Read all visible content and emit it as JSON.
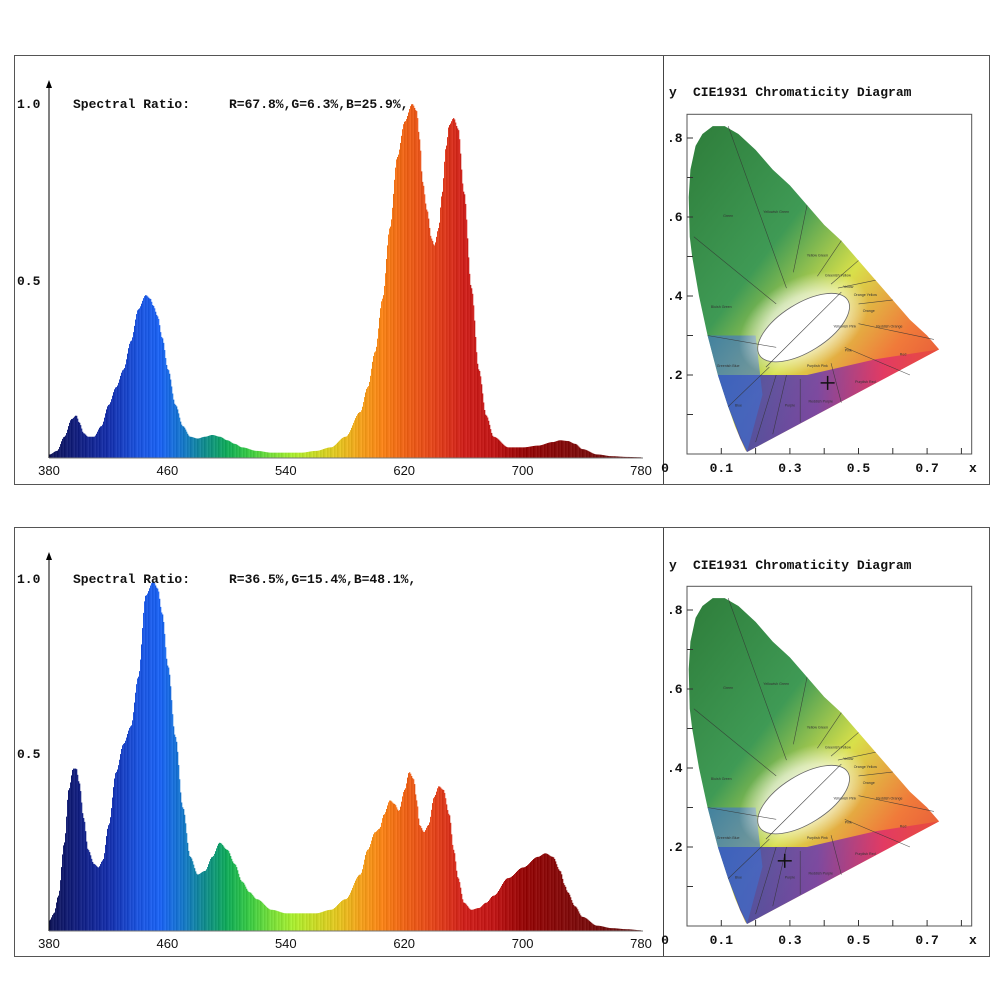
{
  "chart_data": [
    {
      "type": "area",
      "id": "spectrum-top",
      "title": "Spectral Ratio:  R=67.8%,G=6.3%,B=25.9%,",
      "spectral_ratio": {
        "R": "67.8%",
        "G": "6.3%",
        "B": "25.9%"
      },
      "xlabel": "",
      "ylabel": "",
      "xlim": [
        380,
        780
      ],
      "ylim": [
        0,
        1.0
      ],
      "x_ticks": [
        "380",
        "460",
        "540",
        "620",
        "700",
        "780"
      ],
      "y_ticks": [
        "0.5",
        "1.0"
      ],
      "x": [
        380,
        385,
        390,
        395,
        398,
        400,
        403,
        406,
        410,
        415,
        420,
        425,
        430,
        435,
        440,
        445,
        448,
        450,
        453,
        456,
        460,
        465,
        470,
        475,
        480,
        485,
        490,
        495,
        500,
        505,
        510,
        520,
        530,
        540,
        550,
        560,
        570,
        580,
        590,
        595,
        600,
        605,
        610,
        615,
        620,
        625,
        628,
        630,
        632,
        635,
        638,
        640,
        643,
        645,
        648,
        650,
        653,
        656,
        660,
        665,
        670,
        675,
        680,
        690,
        700,
        710,
        720,
        725,
        730,
        735,
        740,
        750,
        760,
        770,
        780
      ],
      "series": [
        {
          "name": "relative intensity",
          "values": [
            0.01,
            0.02,
            0.06,
            0.11,
            0.12,
            0.1,
            0.07,
            0.06,
            0.06,
            0.09,
            0.15,
            0.2,
            0.25,
            0.33,
            0.42,
            0.46,
            0.45,
            0.43,
            0.4,
            0.34,
            0.25,
            0.15,
            0.09,
            0.06,
            0.055,
            0.06,
            0.065,
            0.06,
            0.05,
            0.04,
            0.03,
            0.02,
            0.015,
            0.015,
            0.015,
            0.02,
            0.03,
            0.06,
            0.13,
            0.2,
            0.3,
            0.45,
            0.65,
            0.85,
            0.95,
            1.0,
            0.98,
            0.9,
            0.78,
            0.7,
            0.62,
            0.6,
            0.65,
            0.74,
            0.88,
            0.94,
            0.96,
            0.93,
            0.75,
            0.48,
            0.25,
            0.12,
            0.06,
            0.03,
            0.03,
            0.035,
            0.045,
            0.05,
            0.048,
            0.04,
            0.025,
            0.01,
            0.005,
            0.003,
            0.002
          ]
        }
      ]
    },
    {
      "type": "scatter",
      "id": "cie-top",
      "title": "CIE1931 Chromaticity Diagram",
      "xlabel": "x",
      "ylabel": "y",
      "xlim": [
        0,
        0.8
      ],
      "ylim": [
        0,
        0.85
      ],
      "x_ticks": [
        "0",
        "0.1",
        "0.3",
        "0.5",
        "0.7"
      ],
      "y_ticks": [
        ".2",
        ".4",
        ".6",
        ".8"
      ],
      "points": [
        {
          "label": "measured chromaticity",
          "x": 0.41,
          "y": 0.18
        }
      ],
      "regions": [
        "Green",
        "Yellowish Green",
        "Yellow Green",
        "Greenish Yellow",
        "Yellow",
        "Orange Yellow",
        "Orange",
        "Bluish Green",
        "Yellowish Pink",
        "Reddish Orange",
        "Pink",
        "Red",
        "Purplish Pink",
        "Purplish Red",
        "Reddish Purple",
        "Purple",
        "Greenish Blue",
        "Blue",
        "Purplish Blue",
        "Violet"
      ]
    },
    {
      "type": "area",
      "id": "spectrum-bottom",
      "title": "Spectral Ratio:  R=36.5%,G=15.4%,B=48.1%,",
      "spectral_ratio": {
        "R": "36.5%",
        "G": "15.4%",
        "B": "48.1%"
      },
      "xlabel": "",
      "ylabel": "",
      "xlim": [
        380,
        780
      ],
      "ylim": [
        0,
        1.0
      ],
      "x_ticks": [
        "380",
        "460",
        "540",
        "620",
        "700",
        "780"
      ],
      "y_ticks": [
        "0.5",
        "1.0"
      ],
      "x": [
        380,
        383,
        386,
        390,
        393,
        396,
        398,
        400,
        403,
        406,
        410,
        413,
        416,
        420,
        425,
        430,
        435,
        440,
        445,
        450,
        453,
        456,
        460,
        465,
        470,
        475,
        480,
        485,
        490,
        495,
        500,
        505,
        510,
        515,
        520,
        530,
        540,
        550,
        560,
        570,
        580,
        590,
        595,
        600,
        603,
        606,
        610,
        613,
        616,
        620,
        623,
        626,
        628,
        630,
        633,
        636,
        640,
        643,
        646,
        650,
        653,
        656,
        660,
        665,
        670,
        675,
        680,
        690,
        700,
        710,
        715,
        720,
        725,
        728,
        730,
        735,
        740,
        750,
        760,
        770,
        780
      ],
      "series": [
        {
          "name": "relative intensity",
          "values": [
            0.03,
            0.05,
            0.1,
            0.25,
            0.4,
            0.46,
            0.46,
            0.42,
            0.32,
            0.23,
            0.19,
            0.18,
            0.2,
            0.3,
            0.45,
            0.53,
            0.58,
            0.72,
            0.95,
            0.99,
            0.97,
            0.9,
            0.75,
            0.55,
            0.35,
            0.21,
            0.16,
            0.17,
            0.21,
            0.25,
            0.23,
            0.19,
            0.14,
            0.11,
            0.09,
            0.06,
            0.05,
            0.05,
            0.05,
            0.06,
            0.09,
            0.16,
            0.23,
            0.28,
            0.29,
            0.33,
            0.37,
            0.36,
            0.34,
            0.4,
            0.45,
            0.43,
            0.37,
            0.3,
            0.28,
            0.3,
            0.38,
            0.41,
            0.4,
            0.33,
            0.23,
            0.15,
            0.08,
            0.06,
            0.065,
            0.08,
            0.1,
            0.15,
            0.18,
            0.21,
            0.22,
            0.21,
            0.17,
            0.13,
            0.11,
            0.07,
            0.04,
            0.015,
            0.008,
            0.005,
            0.002
          ]
        }
      ]
    },
    {
      "type": "scatter",
      "id": "cie-bottom",
      "title": "CIE1931 Chromaticity Diagram",
      "xlabel": "x",
      "ylabel": "y",
      "xlim": [
        0,
        0.8
      ],
      "ylim": [
        0,
        0.85
      ],
      "x_ticks": [
        "0",
        "0.1",
        "0.3",
        "0.5",
        "0.7"
      ],
      "y_ticks": [
        ".2",
        ".4",
        ".6",
        ".8"
      ],
      "points": [
        {
          "label": "measured chromaticity",
          "x": 0.285,
          "y": 0.165
        }
      ],
      "regions": [
        "Green",
        "Yellowish Green",
        "Yellow Green",
        "Greenish Yellow",
        "Yellow",
        "Orange Yellow",
        "Orange",
        "Bluish Green",
        "Yellowish Pink",
        "Reddish Orange",
        "Pink",
        "Red",
        "Purplish Pink",
        "Purplish Red",
        "Reddish Purple",
        "Purple",
        "Greenish Blue",
        "Blue",
        "Purplish Blue",
        "Violet"
      ]
    }
  ],
  "panels": {
    "top": {
      "y_tick_top": "1.0",
      "y_tick_mid": "0.5",
      "ratio_label": "Spectral Ratio:",
      "ratio_values": "R=67.8%,G=6.3%,B=25.9%,",
      "cie_title": "CIE1931 Chromaticity Diagram",
      "cie_y_axis": "y",
      "cie_x_axis": "x"
    },
    "bottom": {
      "y_tick_top": "1.0",
      "y_tick_mid": "0.5",
      "ratio_label": "Spectral Ratio:",
      "ratio_values": "R=36.5%,G=15.4%,B=48.1%,",
      "cie_title": "CIE1931 Chromaticity Diagram",
      "cie_y_axis": "y",
      "cie_x_axis": "x"
    }
  },
  "region_labels": {
    "green": "Green",
    "yellowish_green": "Yellowish Green",
    "yellow_green": "Yellow Green",
    "greenish_yellow": "Greenish Yellow",
    "yellow": "Yellow",
    "orange_yellow": "Orange Yellow",
    "orange": "Orange",
    "bluish_green": "Bluish Green",
    "yellowish_pink": "Yellowish Pink",
    "reddish_orange": "Reddish Orange",
    "pink": "Pink",
    "red": "Red",
    "purplish_pink": "Purplish Pink",
    "purplish_red": "Purplish Red",
    "reddish_purple": "Reddish Purple",
    "purple": "Purple",
    "greenish_blue": "Greenish Blue",
    "blue": "Blue"
  }
}
